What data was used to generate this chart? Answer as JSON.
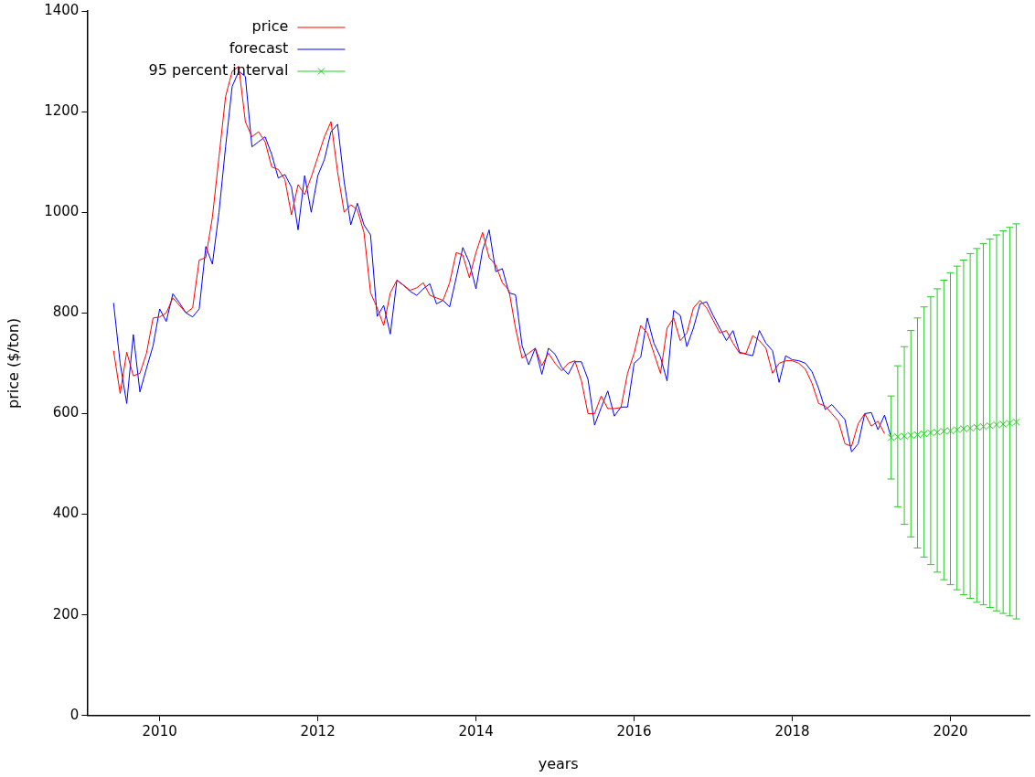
{
  "chart_data": {
    "type": "line",
    "xlabel": "years",
    "ylabel": "price ($/ton)",
    "xlim": [
      "2009-02",
      "2021-01"
    ],
    "xticks": [
      "2010",
      "2012",
      "2014",
      "2016",
      "2018",
      "2020"
    ],
    "ylim": [
      0,
      1400
    ],
    "yticks": [
      0,
      200,
      400,
      600,
      800,
      1000,
      1200,
      1400
    ],
    "grid": false,
    "legend": "top left",
    "line_style": "solid",
    "series": [
      {
        "name": "price",
        "color": "#ff0000",
        "marker": "none",
        "x": [
          "2009-06",
          "2009-07",
          "2009-08",
          "2009-09",
          "2009-10",
          "2009-11",
          "2009-12",
          "2010-01",
          "2010-02",
          "2010-03",
          "2010-04",
          "2010-05",
          "2010-06",
          "2010-07",
          "2010-08",
          "2010-09",
          "2010-10",
          "2010-11",
          "2010-12",
          "2011-01",
          "2011-02",
          "2011-03",
          "2011-04",
          "2011-05",
          "2011-06",
          "2011-07",
          "2011-08",
          "2011-09",
          "2011-10",
          "2011-11",
          "2011-12",
          "2012-01",
          "2012-02",
          "2012-03",
          "2012-04",
          "2012-05",
          "2012-06",
          "2012-07",
          "2012-08",
          "2012-09",
          "2012-10",
          "2012-11",
          "2012-12",
          "2013-01",
          "2013-02",
          "2013-03",
          "2013-04",
          "2013-05",
          "2013-06",
          "2013-07",
          "2013-08",
          "2013-09",
          "2013-10",
          "2013-11",
          "2013-12",
          "2014-01",
          "2014-02",
          "2014-03",
          "2014-04",
          "2014-05",
          "2014-06",
          "2014-07",
          "2014-08",
          "2014-09",
          "2014-10",
          "2014-11",
          "2014-12",
          "2015-01",
          "2015-02",
          "2015-03",
          "2015-04",
          "2015-05",
          "2015-06",
          "2015-07",
          "2015-08",
          "2015-09",
          "2015-10",
          "2015-11",
          "2015-12",
          "2016-01",
          "2016-02",
          "2016-03",
          "2016-04",
          "2016-05",
          "2016-06",
          "2016-07",
          "2016-08",
          "2016-09",
          "2016-10",
          "2016-11",
          "2016-12",
          "2017-01",
          "2017-02",
          "2017-03",
          "2017-04",
          "2017-05",
          "2017-06",
          "2017-07",
          "2017-08",
          "2017-09",
          "2017-10",
          "2017-11",
          "2017-12",
          "2018-01",
          "2018-02",
          "2018-03",
          "2018-04",
          "2018-05",
          "2018-06",
          "2018-07",
          "2018-08",
          "2018-09",
          "2018-10",
          "2018-11",
          "2018-12",
          "2019-01",
          "2019-02",
          "2019-03"
        ],
        "values": [
          725,
          640,
          722,
          675,
          680,
          720,
          790,
          792,
          800,
          830,
          815,
          800,
          810,
          905,
          910,
          990,
          1110,
          1230,
          1280,
          1290,
          1180,
          1150,
          1160,
          1140,
          1090,
          1085,
          1065,
          995,
          1055,
          1035,
          1070,
          1110,
          1150,
          1180,
          1080,
          1000,
          1015,
          1005,
          960,
          840,
          810,
          775,
          840,
          865,
          855,
          845,
          850,
          860,
          835,
          830,
          825,
          860,
          920,
          915,
          870,
          920,
          960,
          910,
          895,
          860,
          845,
          770,
          710,
          720,
          730,
          695,
          720,
          700,
          685,
          700,
          705,
          665,
          600,
          600,
          635,
          610,
          610,
          612,
          680,
          720,
          775,
          760,
          720,
          680,
          770,
          790,
          745,
          760,
          810,
          825,
          810,
          785,
          760,
          765,
          740,
          720,
          720,
          755,
          745,
          730,
          680,
          700,
          705,
          705,
          700,
          688,
          660,
          620,
          615,
          600,
          585,
          540,
          535,
          580,
          600,
          575,
          585,
          560
        ]
      },
      {
        "name": "forecast",
        "color": "#0000ff",
        "marker": "none",
        "x": [
          "2009-06",
          "2009-07",
          "2009-08",
          "2009-09",
          "2009-10",
          "2009-11",
          "2009-12",
          "2010-01",
          "2010-02",
          "2010-03",
          "2010-04",
          "2010-05",
          "2010-06",
          "2010-07",
          "2010-08",
          "2010-09",
          "2010-10",
          "2010-11",
          "2010-12",
          "2011-01",
          "2011-02",
          "2011-03",
          "2011-04",
          "2011-05",
          "2011-06",
          "2011-07",
          "2011-08",
          "2011-09",
          "2011-10",
          "2011-11",
          "2011-12",
          "2012-01",
          "2012-02",
          "2012-03",
          "2012-04",
          "2012-05",
          "2012-06",
          "2012-07",
          "2012-08",
          "2012-09",
          "2012-10",
          "2012-11",
          "2012-12",
          "2013-01",
          "2013-02",
          "2013-03",
          "2013-04",
          "2013-05",
          "2013-06",
          "2013-07",
          "2013-08",
          "2013-09",
          "2013-10",
          "2013-11",
          "2013-12",
          "2014-01",
          "2014-02",
          "2014-03",
          "2014-04",
          "2014-05",
          "2014-06",
          "2014-07",
          "2014-08",
          "2014-09",
          "2014-10",
          "2014-11",
          "2014-12",
          "2015-01",
          "2015-02",
          "2015-03",
          "2015-04",
          "2015-05",
          "2015-06",
          "2015-07",
          "2015-08",
          "2015-09",
          "2015-10",
          "2015-11",
          "2015-12",
          "2016-01",
          "2016-02",
          "2016-03",
          "2016-04",
          "2016-05",
          "2016-06",
          "2016-07",
          "2016-08",
          "2016-09",
          "2016-10",
          "2016-11",
          "2016-12",
          "2017-01",
          "2017-02",
          "2017-03",
          "2017-04",
          "2017-05",
          "2017-06",
          "2017-07",
          "2017-08",
          "2017-09",
          "2017-10",
          "2017-11",
          "2017-12",
          "2018-01",
          "2018-02",
          "2018-03",
          "2018-04",
          "2018-05",
          "2018-06",
          "2018-07",
          "2018-08",
          "2018-09",
          "2018-10",
          "2018-11",
          "2018-12",
          "2019-01",
          "2019-02",
          "2019-03",
          "2019-04"
        ],
        "values": [
          820,
          700,
          620,
          757,
          643,
          690,
          735,
          808,
          783,
          838,
          820,
          800,
          792,
          808,
          932,
          897,
          1000,
          1130,
          1250,
          1280,
          1270,
          1130,
          1140,
          1150,
          1115,
          1068,
          1075,
          1050,
          965,
          1073,
          1000,
          1073,
          1105,
          1160,
          1175,
          1060,
          975,
          1018,
          975,
          955,
          793,
          815,
          758,
          865,
          855,
          843,
          835,
          848,
          858,
          818,
          825,
          812,
          870,
          930,
          900,
          848,
          925,
          965,
          882,
          888,
          840,
          836,
          735,
          697,
          730,
          678,
          730,
          718,
          692,
          678,
          703,
          703,
          668,
          577,
          612,
          645,
          595,
          613,
          613,
          700,
          712,
          790,
          740,
          712,
          665,
          805,
          795,
          733,
          770,
          818,
          822,
          795,
          770,
          745,
          765,
          722,
          718,
          715,
          765,
          740,
          725,
          662,
          715,
          707,
          705,
          700,
          683,
          650,
          608,
          618,
          603,
          588,
          524,
          540,
          600,
          602,
          568,
          597,
          553
        ]
      },
      {
        "name": "95 percent interval",
        "color": "#22cc22",
        "type": "scatter",
        "marker": "cross",
        "x": [
          "2019-04",
          "2019-05",
          "2019-06",
          "2019-07",
          "2019-08",
          "2019-09",
          "2019-10",
          "2019-11",
          "2019-12",
          "2020-01",
          "2020-02",
          "2020-03",
          "2020-04",
          "2020-05",
          "2020-06",
          "2020-07",
          "2020-08",
          "2020-09",
          "2020-10",
          "2020-11"
        ],
        "values": [
          552,
          554,
          555,
          557,
          558,
          560,
          562,
          563,
          565,
          566,
          568,
          570,
          571,
          573,
          574,
          576,
          578,
          579,
          581,
          583
        ],
        "errors": [
          [
            470,
            635
          ],
          [
            415,
            695
          ],
          [
            380,
            733
          ],
          [
            355,
            765
          ],
          [
            333,
            790
          ],
          [
            315,
            812
          ],
          [
            300,
            832
          ],
          [
            285,
            848
          ],
          [
            270,
            865
          ],
          [
            260,
            880
          ],
          [
            250,
            893
          ],
          [
            240,
            905
          ],
          [
            233,
            918
          ],
          [
            225,
            928
          ],
          [
            220,
            938
          ],
          [
            215,
            947
          ],
          [
            208,
            955
          ],
          [
            203,
            963
          ],
          [
            198,
            970
          ],
          [
            192,
            977
          ]
        ]
      }
    ]
  }
}
